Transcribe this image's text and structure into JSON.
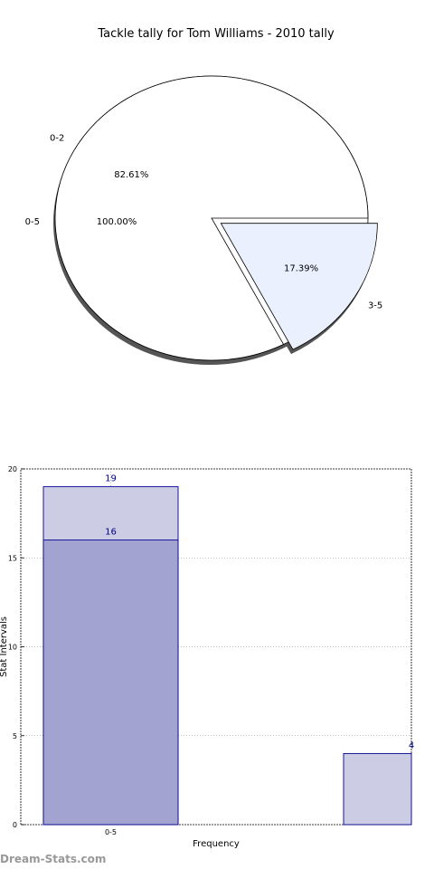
{
  "watermark": "Dream-Stats.com",
  "chart_data": [
    {
      "type": "pie",
      "title": "Tackle tally for Tom Williams - 2010 tally",
      "outer": {
        "labels": [
          "0-5"
        ],
        "percent_labels": [
          "100.00%"
        ],
        "values": [
          100
        ]
      },
      "inner": {
        "labels": [
          "0-2",
          "3-5"
        ],
        "percent_labels": [
          "82.61%",
          "17.39%"
        ],
        "values": [
          82.61,
          17.39
        ],
        "colors": [
          "#ffffff",
          "#eaf0fd"
        ],
        "exploded": [
          "3-5"
        ]
      },
      "shadow": true
    },
    {
      "type": "bar",
      "xlabel": "Frequency",
      "ylabel": "Stat Intervals",
      "categories": [
        "0-5"
      ],
      "ylim": [
        0,
        20
      ],
      "yticks": [
        "0",
        "5",
        "10",
        "15",
        "20"
      ],
      "grid": true,
      "bars": [
        {
          "value": 19,
          "label": "19",
          "color": "#cccce4"
        },
        {
          "value": 16,
          "label": "16",
          "color": "#a3a3d1"
        },
        {
          "value": 4,
          "label": "4",
          "color": "#cccce4"
        }
      ],
      "label_color": "#00008b",
      "edge_color": "#00008b"
    }
  ]
}
